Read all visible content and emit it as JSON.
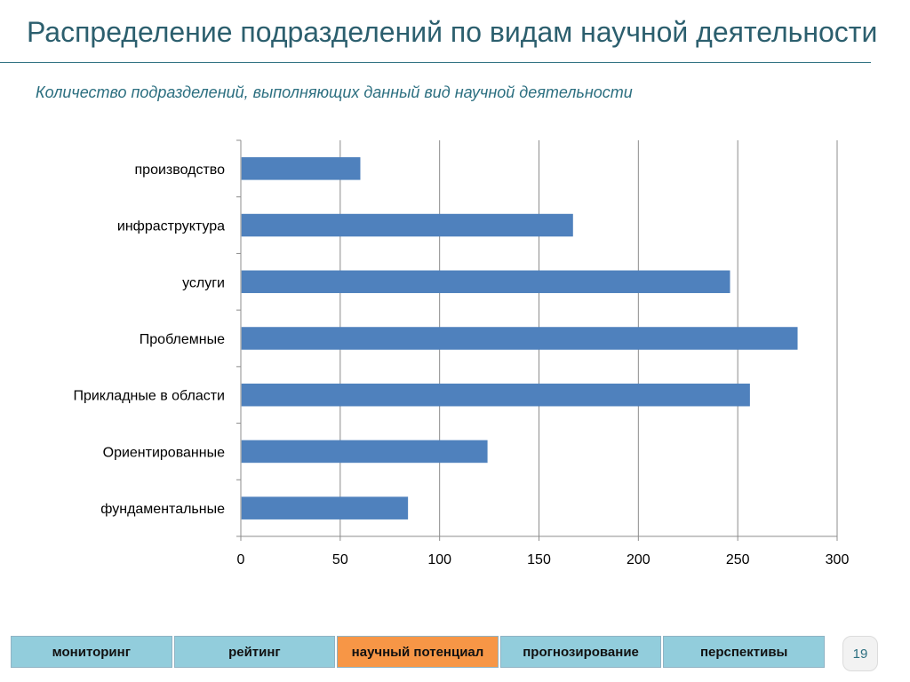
{
  "slide": {
    "title": "Распределение подразделений по видам научной деятельности",
    "page_number": "19"
  },
  "chart_data": {
    "type": "bar",
    "orientation": "horizontal",
    "title": "Количество подразделений, выполняющих данный вид научной деятельности",
    "categories": [
      "производство",
      "инфраструктура",
      "услуги",
      "Проблемные",
      "Прикладные в области",
      "Ориентированные",
      "фундаментальные"
    ],
    "values": [
      60,
      167,
      246,
      280,
      256,
      124,
      84
    ],
    "xlim": [
      0,
      300
    ],
    "x_ticks": [
      0,
      50,
      100,
      150,
      200,
      250,
      300
    ],
    "grid": true,
    "bar_color": "#4f81bd"
  },
  "nav": {
    "tabs": [
      {
        "label": "мониторинг",
        "active": false
      },
      {
        "label": "рейтинг",
        "active": false
      },
      {
        "label": "научный потенциал",
        "active": true
      },
      {
        "label": "прогнозирование",
        "active": false
      },
      {
        "label": "перспективы",
        "active": false
      }
    ]
  }
}
